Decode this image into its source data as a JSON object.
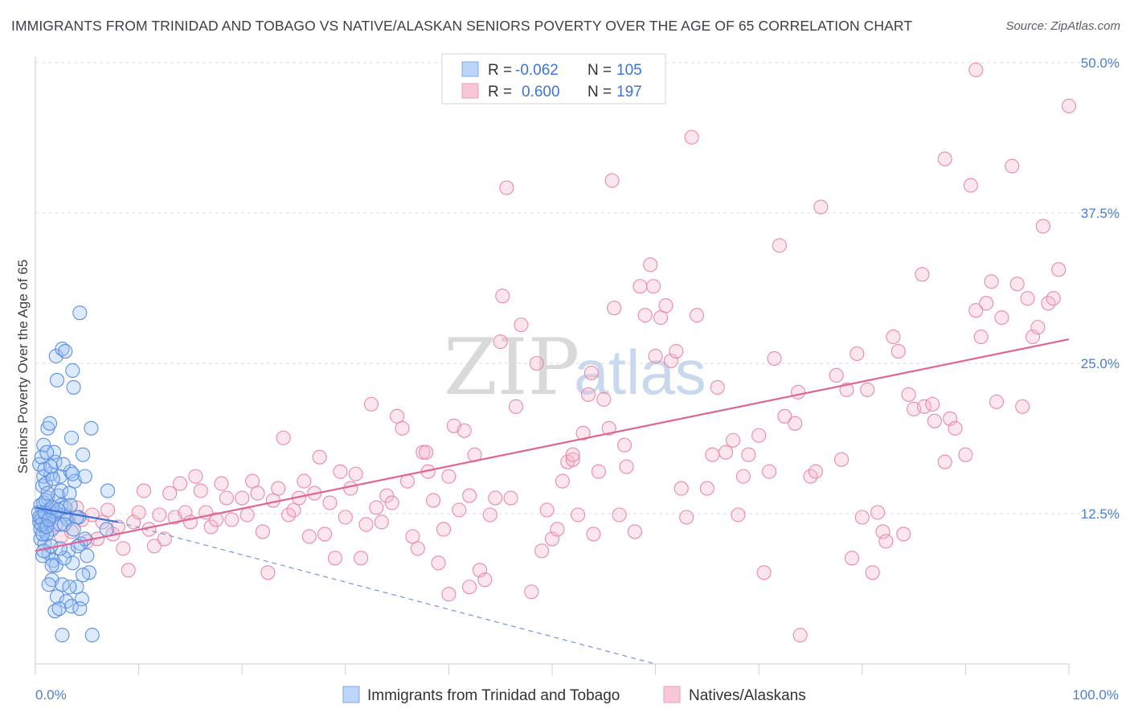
{
  "title": "IMMIGRANTS FROM TRINIDAD AND TOBAGO VS NATIVE/ALASKAN SENIORS POVERTY OVER THE AGE OF 65 CORRELATION CHART",
  "source": "Source: ZipAtlas.com",
  "watermark": {
    "zip": "ZIP",
    "atlas": "atlas"
  },
  "chart_data": {
    "type": "scatter",
    "ylabel": "Seniors Poverty Over the Age of 65",
    "xlim": [
      0,
      100
    ],
    "ylim": [
      0,
      50
    ],
    "x_tick_labels": [
      "0.0%",
      "100.0%"
    ],
    "y_ticks": [
      12.5,
      25.0,
      37.5,
      50.0
    ],
    "y_tick_labels": [
      "12.5%",
      "25.0%",
      "37.5%",
      "50.0%"
    ],
    "grid": "horizontal dashed",
    "legend_placement": "top-center",
    "legend": [
      {
        "name": "Immigrants from Trinidad and Tobago",
        "r_label": "R =",
        "r": "-0.062",
        "n_label": "N =",
        "n": "105",
        "color": "#9ec3f5",
        "stroke": "#5b8fe0"
      },
      {
        "name": "Natives/Alaskans",
        "r_label": "R =",
        "r": "0.600",
        "n_label": "N =",
        "n": "197",
        "color": "#f7b8cb",
        "stroke": "#e27a9c"
      }
    ],
    "series": [
      {
        "name": "Immigrants from Trinidad and Tobago",
        "color": "#5b8fe0",
        "trend": {
          "x": [
            0,
            8,
            60
          ],
          "y": [
            13.0,
            11.8,
            0.0
          ],
          "solid_until": 8
        },
        "points": [
          [
            0.3,
            12.6
          ],
          [
            0.4,
            11.8
          ],
          [
            0.5,
            13.2
          ],
          [
            0.6,
            12.0
          ],
          [
            0.7,
            14.8
          ],
          [
            0.8,
            15.6
          ],
          [
            0.9,
            11.4
          ],
          [
            1.0,
            12.4
          ],
          [
            0.4,
            16.6
          ],
          [
            0.6,
            17.2
          ],
          [
            0.8,
            18.2
          ],
          [
            1.0,
            15.0
          ],
          [
            1.2,
            13.8
          ],
          [
            1.4,
            12.2
          ],
          [
            1.6,
            11.2
          ],
          [
            0.5,
            10.4
          ],
          [
            0.9,
            10.0
          ],
          [
            1.3,
            9.2
          ],
          [
            1.7,
            8.6
          ],
          [
            2.0,
            8.2
          ],
          [
            0.7,
            9.0
          ],
          [
            1.1,
            10.8
          ],
          [
            1.5,
            15.8
          ],
          [
            1.9,
            16.8
          ],
          [
            2.2,
            14.0
          ],
          [
            2.5,
            13.2
          ],
          [
            2.8,
            12.4
          ],
          [
            3.1,
            12.0
          ],
          [
            1.2,
            19.6
          ],
          [
            1.8,
            17.6
          ],
          [
            2.4,
            15.6
          ],
          [
            2.9,
            13.0
          ],
          [
            3.4,
            16.0
          ],
          [
            3.8,
            15.2
          ],
          [
            4.2,
            12.2
          ],
          [
            4.6,
            17.4
          ],
          [
            1.6,
            7.0
          ],
          [
            2.1,
            5.6
          ],
          [
            2.6,
            6.6
          ],
          [
            3.0,
            5.2
          ],
          [
            3.5,
            4.8
          ],
          [
            4.0,
            6.4
          ],
          [
            4.5,
            5.4
          ],
          [
            1.9,
            4.4
          ],
          [
            2.6,
            2.4
          ],
          [
            5.5,
            2.4
          ],
          [
            2.0,
            25.6
          ],
          [
            2.1,
            23.6
          ],
          [
            3.6,
            24.4
          ],
          [
            3.7,
            23.0
          ],
          [
            2.6,
            26.2
          ],
          [
            3.5,
            18.8
          ],
          [
            3.6,
            15.8
          ],
          [
            5.4,
            19.6
          ],
          [
            4.8,
            15.6
          ],
          [
            7.0,
            14.4
          ],
          [
            0.8,
            13.4
          ],
          [
            1.4,
            12.8
          ],
          [
            2.0,
            12.6
          ],
          [
            2.4,
            11.6
          ],
          [
            0.6,
            12.2
          ],
          [
            1.8,
            12.4
          ],
          [
            3.2,
            9.4
          ],
          [
            4.4,
            10.0
          ],
          [
            5.2,
            7.6
          ],
          [
            4.6,
            7.4
          ],
          [
            3.6,
            8.4
          ],
          [
            2.8,
            8.8
          ],
          [
            1.6,
            8.2
          ],
          [
            1.3,
            6.6
          ],
          [
            2.3,
            4.6
          ],
          [
            3.3,
            6.4
          ],
          [
            4.3,
            4.6
          ],
          [
            4.3,
            29.2
          ],
          [
            2.9,
            26.0
          ],
          [
            1.4,
            20.0
          ],
          [
            1.1,
            17.6
          ],
          [
            0.9,
            16.2
          ],
          [
            1.7,
            15.4
          ],
          [
            2.5,
            14.4
          ],
          [
            3.3,
            14.2
          ],
          [
            4.0,
            12.2
          ],
          [
            4.8,
            10.4
          ],
          [
            6.9,
            11.2
          ],
          [
            0.5,
            11.2
          ],
          [
            0.7,
            10.8
          ],
          [
            1.0,
            13.6
          ],
          [
            1.2,
            14.2
          ],
          [
            1.5,
            16.4
          ],
          [
            2.7,
            16.6
          ],
          [
            3.4,
            13.2
          ],
          [
            0.4,
            12.2
          ],
          [
            0.6,
            11.6
          ],
          [
            0.9,
            12.6
          ],
          [
            1.1,
            11.4
          ],
          [
            1.3,
            12.0
          ],
          [
            1.6,
            13.0
          ],
          [
            2.2,
            12.8
          ],
          [
            2.8,
            11.6
          ],
          [
            3.7,
            11.2
          ],
          [
            4.1,
            9.8
          ],
          [
            5.0,
            9.0
          ],
          [
            2.4,
            9.6
          ],
          [
            1.5,
            9.8
          ],
          [
            0.8,
            9.4
          ]
        ]
      },
      {
        "name": "Natives/Alaskans",
        "color": "#e27a9c",
        "trend": {
          "x": [
            0,
            100
          ],
          "y": [
            9.4,
            27.0
          ]
        },
        "points": [
          [
            1.0,
            11.4
          ],
          [
            1.5,
            12.6
          ],
          [
            2.0,
            11.6
          ],
          [
            2.5,
            10.6
          ],
          [
            3.0,
            12.2
          ],
          [
            3.5,
            11.0
          ],
          [
            4.0,
            13.0
          ],
          [
            4.5,
            12.0
          ],
          [
            5.0,
            10.2
          ],
          [
            5.5,
            12.4
          ],
          [
            6.0,
            10.4
          ],
          [
            6.5,
            11.8
          ],
          [
            7.0,
            12.8
          ],
          [
            7.5,
            10.8
          ],
          [
            8.0,
            11.4
          ],
          [
            8.5,
            9.6
          ],
          [
            9.0,
            7.8
          ],
          [
            9.5,
            11.8
          ],
          [
            10.0,
            12.6
          ],
          [
            10.5,
            14.4
          ],
          [
            11.0,
            11.2
          ],
          [
            11.5,
            9.8
          ],
          [
            12.0,
            12.4
          ],
          [
            12.5,
            10.4
          ],
          [
            13.0,
            14.2
          ],
          [
            13.5,
            12.2
          ],
          [
            14.0,
            15.0
          ],
          [
            14.5,
            12.6
          ],
          [
            15.0,
            11.8
          ],
          [
            15.5,
            15.6
          ],
          [
            16.0,
            14.4
          ],
          [
            16.5,
            12.6
          ],
          [
            17.0,
            11.4
          ],
          [
            17.5,
            12.0
          ],
          [
            18.0,
            15.0
          ],
          [
            18.5,
            13.8
          ],
          [
            19.0,
            12.0
          ],
          [
            20.0,
            13.8
          ],
          [
            20.5,
            12.4
          ],
          [
            21.0,
            15.2
          ],
          [
            21.5,
            14.2
          ],
          [
            22.0,
            11.0
          ],
          [
            22.5,
            7.6
          ],
          [
            23.0,
            13.6
          ],
          [
            23.5,
            14.6
          ],
          [
            24.0,
            18.8
          ],
          [
            24.5,
            12.4
          ],
          [
            25.0,
            12.8
          ],
          [
            25.5,
            13.8
          ],
          [
            26.0,
            15.2
          ],
          [
            26.5,
            10.6
          ],
          [
            27.0,
            14.2
          ],
          [
            27.5,
            17.2
          ],
          [
            28.0,
            10.8
          ],
          [
            28.5,
            13.4
          ],
          [
            29.0,
            8.8
          ],
          [
            29.5,
            16.0
          ],
          [
            30.0,
            12.2
          ],
          [
            30.5,
            14.6
          ],
          [
            31.0,
            15.8
          ],
          [
            31.5,
            8.8
          ],
          [
            32.0,
            11.6
          ],
          [
            32.5,
            21.6
          ],
          [
            33.0,
            13.0
          ],
          [
            33.5,
            11.8
          ],
          [
            34.0,
            14.0
          ],
          [
            34.5,
            13.4
          ],
          [
            35.0,
            20.6
          ],
          [
            35.5,
            19.6
          ],
          [
            36.0,
            15.2
          ],
          [
            36.5,
            10.6
          ],
          [
            37.0,
            9.6
          ],
          [
            37.5,
            17.6
          ],
          [
            38.0,
            16.0
          ],
          [
            38.5,
            13.6
          ],
          [
            39.0,
            8.4
          ],
          [
            39.5,
            11.2
          ],
          [
            40.0,
            15.6
          ],
          [
            40.5,
            19.8
          ],
          [
            41.0,
            12.8
          ],
          [
            41.5,
            19.4
          ],
          [
            42.0,
            14.0
          ],
          [
            42.5,
            17.4
          ],
          [
            43.0,
            7.8
          ],
          [
            43.5,
            7.0
          ],
          [
            44.0,
            12.4
          ],
          [
            44.5,
            13.8
          ],
          [
            45.0,
            26.8
          ],
          [
            45.2,
            30.6
          ],
          [
            45.6,
            39.6
          ],
          [
            46.0,
            13.8
          ],
          [
            46.5,
            21.4
          ],
          [
            47.0,
            28.2
          ],
          [
            48.0,
            6.0
          ],
          [
            48.5,
            25.0
          ],
          [
            49.0,
            9.4
          ],
          [
            49.5,
            12.8
          ],
          [
            50.0,
            10.4
          ],
          [
            50.5,
            11.2
          ],
          [
            51.0,
            15.2
          ],
          [
            51.5,
            16.8
          ],
          [
            52.0,
            17.0
          ],
          [
            52.5,
            12.4
          ],
          [
            53.0,
            19.2
          ],
          [
            53.5,
            22.4
          ],
          [
            54.0,
            10.8
          ],
          [
            54.5,
            16.0
          ],
          [
            55.0,
            22.0
          ],
          [
            55.5,
            19.6
          ],
          [
            55.8,
            40.2
          ],
          [
            56.0,
            29.6
          ],
          [
            56.5,
            12.4
          ],
          [
            57.0,
            18.2
          ],
          [
            58.0,
            11.0
          ],
          [
            58.5,
            31.4
          ],
          [
            59.0,
            29.0
          ],
          [
            59.5,
            33.2
          ],
          [
            60.0,
            25.6
          ],
          [
            60.5,
            28.8
          ],
          [
            61.0,
            29.8
          ],
          [
            61.5,
            25.2
          ],
          [
            62.0,
            26.0
          ],
          [
            62.5,
            14.6
          ],
          [
            63.0,
            12.2
          ],
          [
            63.5,
            43.8
          ],
          [
            64.0,
            29.0
          ],
          [
            65.0,
            14.6
          ],
          [
            65.5,
            17.4
          ],
          [
            66.0,
            23.0
          ],
          [
            66.8,
            17.6
          ],
          [
            67.5,
            18.6
          ],
          [
            68.0,
            12.4
          ],
          [
            68.5,
            15.6
          ],
          [
            69.0,
            17.4
          ],
          [
            70.0,
            19.0
          ],
          [
            70.5,
            7.6
          ],
          [
            71.0,
            16.0
          ],
          [
            71.5,
            25.4
          ],
          [
            72.5,
            20.6
          ],
          [
            73.5,
            20.0
          ],
          [
            73.8,
            22.6
          ],
          [
            74.0,
            2.4
          ],
          [
            75.0,
            15.6
          ],
          [
            75.5,
            16.0
          ],
          [
            76.0,
            38.0
          ],
          [
            77.5,
            24.0
          ],
          [
            78.0,
            17.0
          ],
          [
            78.5,
            22.8
          ],
          [
            79.0,
            8.8
          ],
          [
            80.0,
            12.2
          ],
          [
            80.5,
            22.8
          ],
          [
            81.0,
            7.6
          ],
          [
            81.5,
            12.6
          ],
          [
            82.0,
            11.0
          ],
          [
            82.3,
            10.2
          ],
          [
            83.0,
            27.2
          ],
          [
            83.5,
            26.0
          ],
          [
            84.0,
            10.8
          ],
          [
            84.5,
            22.4
          ],
          [
            85.0,
            21.2
          ],
          [
            85.8,
            32.4
          ],
          [
            86.0,
            21.4
          ],
          [
            86.8,
            21.6
          ],
          [
            87.0,
            20.2
          ],
          [
            88.0,
            16.8
          ],
          [
            88.5,
            20.4
          ],
          [
            89.0,
            19.6
          ],
          [
            90.0,
            17.4
          ],
          [
            90.5,
            39.8
          ],
          [
            91.0,
            29.4
          ],
          [
            91.5,
            27.2
          ],
          [
            92.0,
            30.0
          ],
          [
            92.5,
            31.8
          ],
          [
            93.0,
            21.8
          ],
          [
            93.5,
            28.8
          ],
          [
            94.5,
            41.4
          ],
          [
            95.0,
            31.6
          ],
          [
            95.5,
            21.4
          ],
          [
            96.0,
            30.4
          ],
          [
            96.5,
            27.2
          ],
          [
            97.0,
            28.0
          ],
          [
            97.5,
            36.4
          ],
          [
            98.0,
            30.0
          ],
          [
            98.5,
            30.4
          ],
          [
            99.0,
            32.8
          ],
          [
            100.0,
            46.4
          ],
          [
            91.0,
            49.4
          ],
          [
            88.0,
            42.0
          ],
          [
            72.0,
            34.8
          ],
          [
            52.0,
            17.4
          ],
          [
            79.5,
            25.8
          ],
          [
            59.8,
            31.4
          ],
          [
            40.0,
            5.8
          ],
          [
            42.0,
            6.4
          ],
          [
            57.2,
            16.4
          ],
          [
            37.8,
            17.6
          ],
          [
            53.8,
            24.2
          ]
        ]
      }
    ]
  }
}
